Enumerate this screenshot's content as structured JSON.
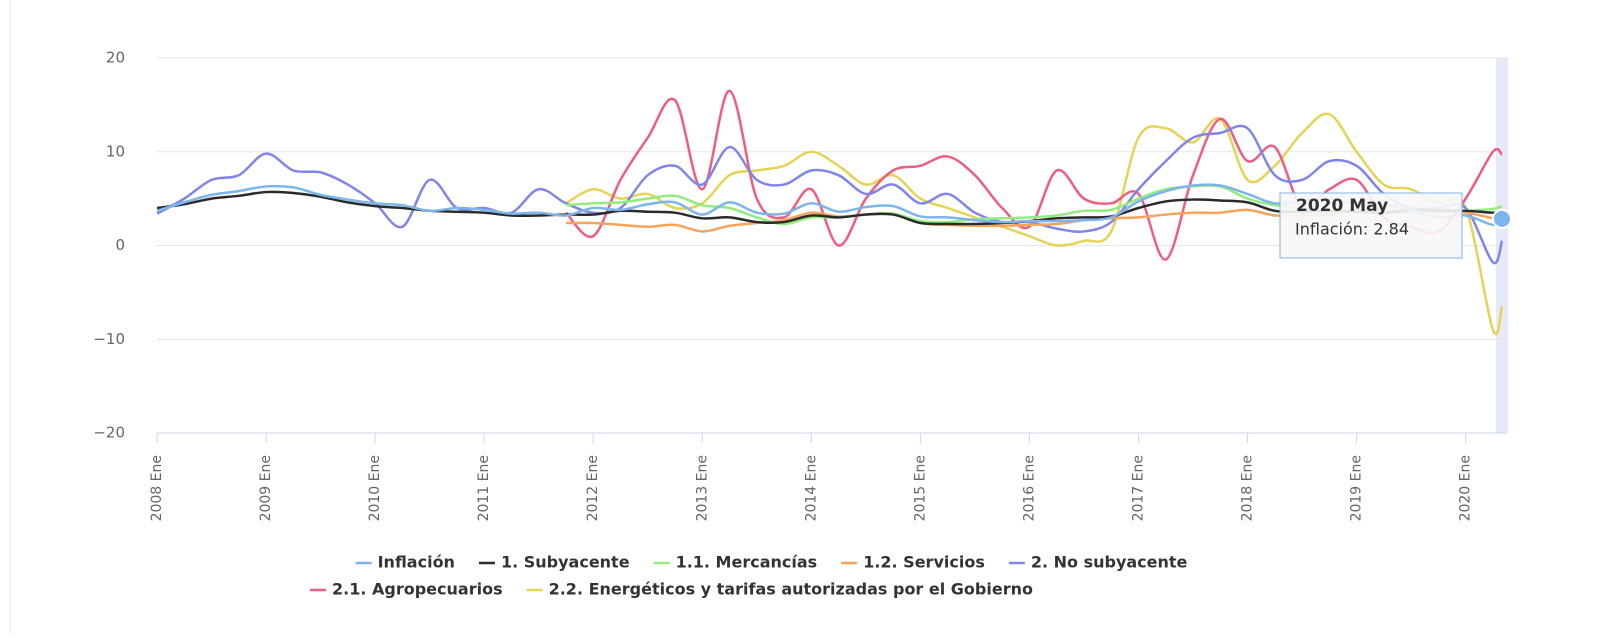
{
  "chart_data": {
    "type": "line",
    "x": [
      2008,
      2008.25,
      2008.5,
      2008.75,
      2009,
      2009.25,
      2009.5,
      2009.75,
      2010,
      2010.25,
      2010.5,
      2010.75,
      2011,
      2011.25,
      2011.5,
      2011.75,
      2012,
      2012.25,
      2012.5,
      2012.75,
      2013,
      2013.25,
      2013.5,
      2013.75,
      2014,
      2014.25,
      2014.5,
      2014.75,
      2015,
      2015.25,
      2015.5,
      2015.75,
      2016,
      2016.25,
      2016.5,
      2016.75,
      2017,
      2017.25,
      2017.5,
      2017.75,
      2018,
      2018.25,
      2018.5,
      2018.75,
      2019,
      2019.25,
      2019.5,
      2019.75,
      2020,
      2020.25,
      2020.333
    ],
    "series": [
      {
        "name": "Inflación",
        "color": "#7cb5ec",
        "values": [
          3.7,
          4.6,
          5.4,
          5.8,
          6.3,
          6.2,
          5.4,
          4.9,
          4.5,
          4.3,
          3.7,
          4.0,
          3.8,
          3.4,
          3.5,
          3.2,
          4.0,
          3.8,
          4.4,
          4.6,
          3.3,
          4.6,
          3.5,
          3.4,
          4.5,
          3.6,
          4.1,
          4.2,
          3.1,
          3.0,
          2.7,
          2.5,
          2.6,
          2.6,
          2.7,
          3.0,
          4.7,
          5.8,
          6.4,
          6.4,
          5.5,
          4.5,
          4.8,
          5.0,
          4.4,
          4.4,
          3.8,
          3.0,
          3.2,
          2.2,
          2.84
        ]
      },
      {
        "name": "1. Subyacente",
        "color": "#2b2b2b",
        "values": [
          4.0,
          4.4,
          5.0,
          5.3,
          5.7,
          5.6,
          5.2,
          4.6,
          4.2,
          4.0,
          3.7,
          3.6,
          3.5,
          3.2,
          3.2,
          3.3,
          3.3,
          3.7,
          3.6,
          3.5,
          2.9,
          3.0,
          2.5,
          2.5,
          3.2,
          3.0,
          3.3,
          3.3,
          2.4,
          2.3,
          2.3,
          2.4,
          2.6,
          2.9,
          3.0,
          3.1,
          4.0,
          4.7,
          4.9,
          4.8,
          4.6,
          3.7,
          3.6,
          3.7,
          3.6,
          3.5,
          3.8,
          3.7,
          3.7,
          3.5,
          3.6
        ]
      },
      {
        "name": "1.1. Mercancías",
        "color": "#90ed7d",
        "values": [
          null,
          null,
          null,
          null,
          null,
          null,
          null,
          null,
          null,
          null,
          null,
          null,
          null,
          null,
          null,
          4.3,
          4.5,
          4.6,
          5.0,
          5.3,
          4.3,
          4.0,
          3.0,
          2.3,
          3.0,
          3.0,
          3.3,
          3.4,
          2.6,
          2.5,
          2.8,
          2.9,
          3.0,
          3.2,
          3.7,
          3.8,
          5.0,
          6.0,
          6.3,
          6.3,
          5.0,
          4.3,
          4.0,
          3.5,
          3.8,
          3.6,
          3.5,
          3.6,
          3.7,
          3.9,
          4.2
        ]
      },
      {
        "name": "1.2. Servicios",
        "color": "#f7a35c",
        "values": [
          null,
          null,
          null,
          null,
          null,
          null,
          null,
          null,
          null,
          null,
          null,
          null,
          null,
          null,
          null,
          2.4,
          2.4,
          2.2,
          2.0,
          2.2,
          1.5,
          2.1,
          2.4,
          2.7,
          3.5,
          3.1,
          3.3,
          3.4,
          2.4,
          2.2,
          2.1,
          2.1,
          2.2,
          2.3,
          2.7,
          2.9,
          3.0,
          3.3,
          3.5,
          3.5,
          3.8,
          3.2,
          3.2,
          3.3,
          3.7,
          3.5,
          3.6,
          3.6,
          3.5,
          2.9,
          2.7
        ]
      },
      {
        "name": "2. No subyacente",
        "color": "#8085e9",
        "values": [
          3.4,
          5.0,
          7.0,
          7.5,
          9.8,
          8.0,
          7.8,
          6.5,
          4.5,
          2.0,
          7.0,
          4.0,
          4.0,
          3.5,
          6.0,
          4.5,
          3.5,
          4.0,
          7.5,
          8.5,
          6.5,
          10.5,
          7.0,
          6.5,
          8.0,
          7.5,
          5.5,
          6.5,
          4.5,
          5.5,
          3.5,
          2.5,
          2.5,
          1.8,
          1.5,
          2.5,
          6.0,
          9.0,
          11.5,
          12.0,
          12.5,
          7.5,
          7.0,
          9.0,
          8.5,
          5.5,
          4.0,
          4.0,
          4.0,
          -1.8,
          0.5
        ]
      },
      {
        "name": "2.1. Agropecuarios",
        "color": "#f15c80",
        "values": [
          null,
          null,
          null,
          null,
          null,
          null,
          null,
          null,
          null,
          null,
          null,
          null,
          null,
          null,
          null,
          3.5,
          1.0,
          7.0,
          11.5,
          15.5,
          6.0,
          16.5,
          5.0,
          3.0,
          6.0,
          0.0,
          5.0,
          8.0,
          8.5,
          9.5,
          7.5,
          4.0,
          2.0,
          8.0,
          5.0,
          4.5,
          5.5,
          -1.5,
          7.5,
          13.5,
          9.0,
          10.5,
          4.0,
          6.0,
          7.0,
          3.0,
          2.0,
          1.5,
          5.0,
          10.0,
          9.7
        ]
      },
      {
        "name": "2.2. Energéticos y tarifas autorizadas por el Gobierno",
        "color": "#e4d354",
        "values": [
          null,
          null,
          null,
          null,
          null,
          null,
          null,
          null,
          null,
          null,
          null,
          null,
          null,
          null,
          null,
          4.5,
          6.0,
          5.0,
          5.5,
          4.0,
          4.5,
          7.5,
          8.0,
          8.5,
          10.0,
          8.5,
          6.5,
          7.5,
          5.0,
          4.0,
          3.0,
          2.0,
          1.0,
          0.0,
          0.5,
          1.5,
          11.5,
          12.5,
          11.0,
          13.5,
          7.0,
          8.5,
          12.0,
          14.0,
          10.0,
          6.5,
          6.0,
          4.5,
          4.0,
          -9.0,
          -6.5
        ]
      }
    ],
    "xlim": [
      2008,
      2020.37
    ],
    "xticks": [
      {
        "value": 2008,
        "label": "2008 Ene"
      },
      {
        "value": 2009,
        "label": "2009 Ene"
      },
      {
        "value": 2010,
        "label": "2010 Ene"
      },
      {
        "value": 2011,
        "label": "2011 Ene"
      },
      {
        "value": 2012,
        "label": "2012 Ene"
      },
      {
        "value": 2013,
        "label": "2013 Ene"
      },
      {
        "value": 2014,
        "label": "2014 Ene"
      },
      {
        "value": 2015,
        "label": "2015 Ene"
      },
      {
        "value": 2016,
        "label": "2016 Ene"
      },
      {
        "value": 2017,
        "label": "2017 Ene"
      },
      {
        "value": 2018,
        "label": "2018 Ene"
      },
      {
        "value": 2019,
        "label": "2019 Ene"
      },
      {
        "value": 2020,
        "label": "2020 Ene"
      }
    ],
    "ylim": [
      -20,
      20
    ],
    "yticks": [
      {
        "value": -20,
        "label": "−20"
      },
      {
        "value": -10,
        "label": "−10"
      },
      0,
      10,
      20
    ],
    "grid": true,
    "legend": "bottom",
    "tooltip": {
      "header": "2020 May",
      "text": "Inflación: 2.84"
    }
  }
}
